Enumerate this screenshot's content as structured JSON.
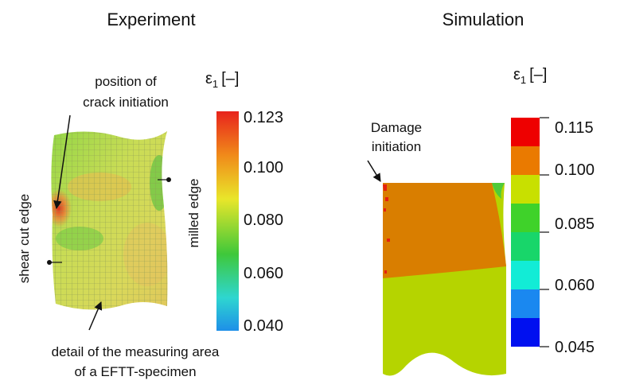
{
  "panels": [
    {
      "title": "Experiment",
      "legend": {
        "symbol": "ε",
        "subscript": "1",
        "unit": "[–]",
        "ticks": [
          "0.123",
          "0.100",
          "0.080",
          "0.060",
          "0.040"
        ]
      },
      "annotations": {
        "crack": [
          "position of",
          "crack initiation"
        ],
        "shear": "shear cut edge",
        "milled": "milled edge",
        "detail": [
          "detail of the measuring area",
          "of a EFTT-specimen"
        ]
      }
    },
    {
      "title": "Simulation",
      "legend": {
        "symbol": "ε",
        "subscript": "1",
        "unit": "[–]",
        "ticks": [
          "0.115",
          "0.100",
          "0.085",
          "0.060",
          "0.045"
        ]
      },
      "annotations": {
        "damage": [
          "Damage",
          "initiation"
        ]
      }
    }
  ]
}
